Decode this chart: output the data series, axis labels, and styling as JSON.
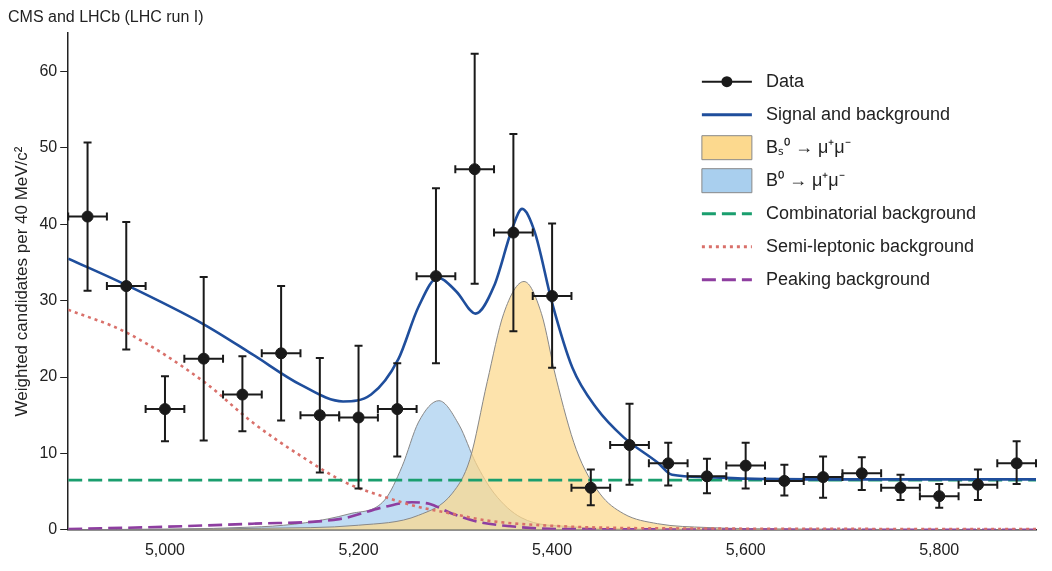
{
  "chart_data": {
    "type": "line",
    "title": "CMS and LHCb (LHC run I)",
    "ylabel": "Weighted candidates per 40 MeV/c²",
    "xlim": [
      4900,
      5900
    ],
    "ylim": [
      0,
      65
    ],
    "xticks": [
      {
        "value": 5000,
        "label": "5,000"
      },
      {
        "value": 5200,
        "label": "5,200"
      },
      {
        "value": 5400,
        "label": "5,400"
      },
      {
        "value": 5600,
        "label": "5,600"
      },
      {
        "value": 5800,
        "label": "5,800"
      }
    ],
    "yticks": [
      0,
      10,
      20,
      30,
      40,
      50,
      60
    ],
    "grid": false,
    "legend": "top right",
    "series": [
      {
        "name": "Data",
        "type": "scatter",
        "marker": "circle",
        "color": "#1a1a1a",
        "x": [
          4920,
          4960,
          5000,
          5040,
          5080,
          5120,
          5160,
          5200,
          5240,
          5280,
          5320,
          5360,
          5400,
          5440,
          5480,
          5520,
          5560,
          5600,
          5640,
          5680,
          5720,
          5760,
          5800,
          5840,
          5880
        ],
        "values": [
          41.0,
          31.9,
          15.8,
          22.4,
          17.7,
          23.1,
          15.0,
          14.7,
          15.8,
          33.2,
          47.2,
          38.9,
          30.6,
          5.5,
          11.1,
          8.7,
          7.0,
          8.4,
          6.4,
          6.9,
          7.4,
          5.5,
          4.4,
          5.9,
          8.7
        ],
        "errors": [
          [
            31.3,
            50.7
          ],
          [
            23.6,
            40.3
          ],
          [
            11.6,
            20.1
          ],
          [
            11.7,
            33.1
          ],
          [
            12.9,
            22.7
          ],
          [
            14.3,
            31.9
          ],
          [
            7.5,
            22.5
          ],
          [
            5.4,
            24.1
          ],
          [
            9.6,
            21.8
          ],
          [
            21.8,
            44.7
          ],
          [
            32.2,
            62.3
          ],
          [
            26.0,
            51.8
          ],
          [
            21.2,
            40.1
          ],
          [
            3.2,
            7.9
          ],
          [
            5.9,
            16.5
          ],
          [
            5.8,
            11.4
          ],
          [
            4.8,
            9.3
          ],
          [
            5.4,
            11.4
          ],
          [
            4.5,
            8.5
          ],
          [
            4.2,
            9.6
          ],
          [
            5.2,
            9.5
          ],
          [
            3.9,
            7.2
          ],
          [
            2.9,
            6.0
          ],
          [
            3.9,
            7.9
          ],
          [
            6.0,
            11.6
          ]
        ],
        "xerrors": [
          20,
          20,
          20,
          20,
          20,
          20,
          20,
          20,
          20,
          20,
          20,
          20,
          20,
          20,
          20,
          20,
          20,
          20,
          20,
          20,
          20,
          20,
          20,
          20,
          20
        ]
      },
      {
        "name": "Signal and background",
        "type": "line",
        "marker": "none",
        "line_style": "solid",
        "color": "#1f4e9c",
        "x": [
          4900,
          4959,
          5040,
          5090,
          5140,
          5184,
          5213,
          5241,
          5262,
          5282,
          5301,
          5321,
          5340,
          5359,
          5369,
          5382,
          5400,
          5421,
          5446,
          5474,
          5509,
          5524,
          5560,
          5600,
          5700,
          5800,
          5900
        ],
        "values": [
          35.5,
          32.1,
          26.9,
          23.0,
          19.0,
          16.8,
          17.7,
          22.3,
          29.2,
          33.0,
          31.2,
          28.3,
          31.9,
          39.5,
          42.0,
          39.0,
          29.7,
          21.2,
          15.9,
          12.1,
          8.8,
          7.2,
          6.9,
          6.7,
          6.6,
          6.6,
          6.6
        ]
      },
      {
        "name": "Bₛ⁰ → μ⁺μ⁻",
        "type": "area",
        "color": "#fcd98e",
        "x": [
          4900,
          5100,
          5200,
          5262,
          5297,
          5315,
          5333,
          5350,
          5371,
          5389,
          5404,
          5425,
          5449,
          5474,
          5509,
          5560,
          5650,
          5900
        ],
        "values": [
          0,
          0.2,
          0.6,
          1.9,
          4.8,
          9.2,
          19.4,
          28.3,
          32.5,
          28.3,
          19.9,
          10.5,
          4.8,
          2.1,
          0.8,
          0.3,
          0.1,
          0
        ]
      },
      {
        "name": "B⁰ → μ⁺μ⁻",
        "type": "area",
        "color": "#a9cfee",
        "x": [
          4900,
          5100,
          5191,
          5227,
          5245,
          5262,
          5283,
          5304,
          5321,
          5340,
          5368,
          5420,
          5500,
          5900
        ],
        "values": [
          0,
          0.4,
          2.1,
          3.9,
          8.3,
          14.1,
          16.9,
          13.7,
          8.8,
          4.8,
          1.6,
          0.4,
          0.1,
          0
        ]
      },
      {
        "name": "Combinatorial background",
        "type": "line",
        "marker": "none",
        "line_style": "dashed",
        "color": "#1a9e6e",
        "x": [
          4900,
          5900
        ],
        "values": [
          6.5,
          6.5
        ]
      },
      {
        "name": "Semi-leptonic background",
        "type": "line",
        "marker": "none",
        "line_style": "dotted",
        "color": "#d9706a",
        "x": [
          4900,
          4959,
          5040,
          5090,
          5140,
          5188,
          5227,
          5262,
          5297,
          5333,
          5404,
          5500,
          5900
        ],
        "values": [
          28.8,
          25.9,
          19.4,
          14.1,
          9.7,
          6.1,
          4.3,
          3.0,
          2.1,
          1.2,
          0.5,
          0.2,
          0.1
        ]
      },
      {
        "name": "Peaking background",
        "type": "line",
        "marker": "none",
        "line_style": "dashed",
        "color": "#8e3ea0",
        "x": [
          4900,
          5000,
          5090,
          5180,
          5227,
          5255,
          5273,
          5297,
          5325,
          5354,
          5404,
          5900
        ],
        "values": [
          0.1,
          0.4,
          0.8,
          1.4,
          3.0,
          3.6,
          3.4,
          2.1,
          1.0,
          0.5,
          0.1,
          0
        ]
      }
    ]
  }
}
